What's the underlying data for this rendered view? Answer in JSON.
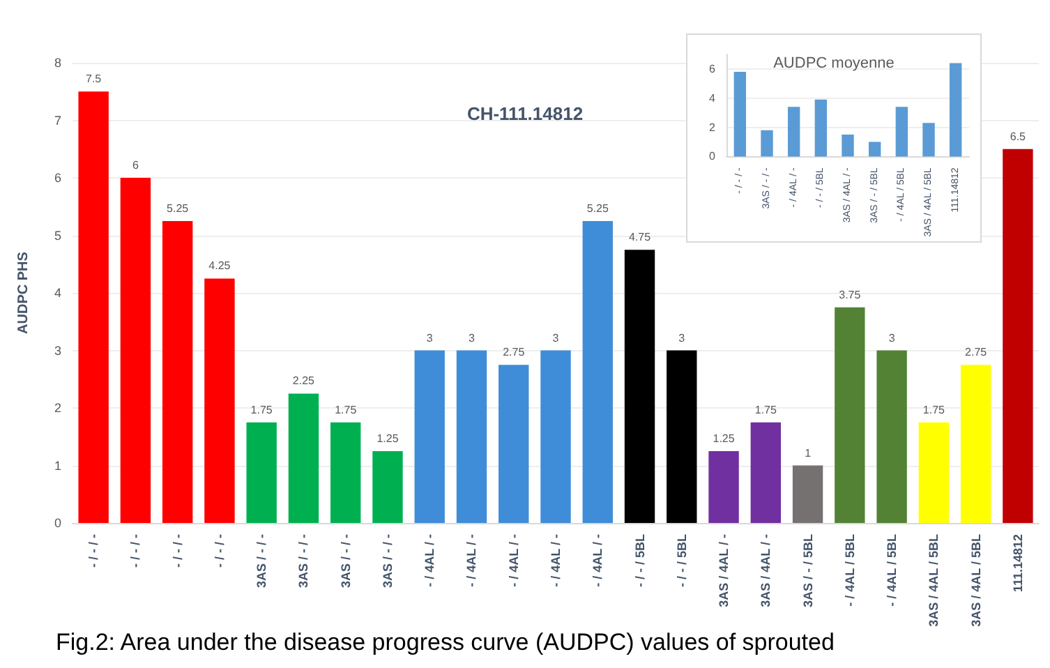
{
  "chart_data": [
    {
      "type": "bar",
      "title": "CH-111.14812",
      "ylabel": "AUDPC PHS",
      "categories": [
        "- / - / -",
        "- / - / -",
        "- / - / -",
        "- / - / -",
        "3AS / - / -",
        "3AS / - / -",
        "3AS / - / -",
        "3AS / - / -",
        "- / 4AL / -",
        "- / 4AL / -",
        "- / 4AL / -",
        "- / 4AL / -",
        "- / 4AL / -",
        "- / - / 5BL",
        "- / - / 5BL",
        "3AS / 4AL / -",
        "3AS / 4AL / -",
        "3AS / - / 5BL",
        "- / 4AL / 5BL",
        "- / 4AL / 5BL",
        "3AS / 4AL / 5BL",
        "3AS / 4AL / 5BL",
        "111.14812"
      ],
      "values": [
        7.5,
        6,
        5.25,
        4.25,
        1.75,
        2.25,
        1.75,
        1.25,
        3,
        3,
        2.75,
        3,
        5.25,
        4.75,
        3,
        1.25,
        1.75,
        1,
        3.75,
        3,
        1.75,
        2.75,
        6.5
      ],
      "colors": [
        "#ff0000",
        "#ff0000",
        "#ff0000",
        "#ff0000",
        "#00b050",
        "#00b050",
        "#00b050",
        "#00b050",
        "#3f8dd8",
        "#3f8dd8",
        "#3f8dd8",
        "#3f8dd8",
        "#3f8dd8",
        "#000000",
        "#000000",
        "#7030a0",
        "#7030a0",
        "#767171",
        "#548235",
        "#548235",
        "#ffff00",
        "#ffff00",
        "#c00000"
      ],
      "ylim": [
        0,
        8
      ],
      "yticks": [
        0,
        1,
        2,
        3,
        4,
        5,
        6,
        7,
        8
      ],
      "grid": "y",
      "data_labels": true,
      "annotations": [
        "Fig.2: Area under the disease progress curve (AUDPC) values of sprouted"
      ]
    },
    {
      "type": "bar",
      "title": "AUDPC moyenne",
      "categories": [
        "- / - / -",
        "3AS / - / -",
        "- / 4AL / -",
        "- / - / 5BL",
        "3AS / 4AL / -",
        "3AS / - / 5BL",
        "- / 4AL / 5BL",
        "3AS / 4AL / 5BL",
        "111.14812"
      ],
      "values": [
        5.8,
        1.8,
        3.4,
        3.9,
        1.5,
        1,
        3.4,
        2.3,
        6.4
      ],
      "color": "#5b9bd5",
      "ylim": [
        0,
        7
      ],
      "yticks": [
        0,
        2,
        4,
        6
      ],
      "grid": "y"
    }
  ]
}
